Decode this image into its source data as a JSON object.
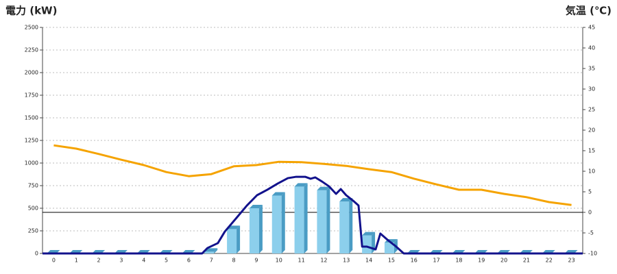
{
  "chart_data": {
    "type": "combo",
    "y_title": "電力 (kW)",
    "y_title_color": "#1f6fb5",
    "y2_title": "気温 (℃)",
    "y2_title_color": "#f08020",
    "categories": [
      "0",
      "1",
      "2",
      "3",
      "4",
      "5",
      "6",
      "7",
      "8",
      "9",
      "10",
      "11",
      "12",
      "13",
      "14",
      "15",
      "16",
      "17",
      "18",
      "19",
      "20",
      "21",
      "22",
      "23"
    ],
    "xlim": [
      -0.5,
      23.5
    ],
    "ylim": [
      0,
      2500
    ],
    "yticks": [
      0,
      250,
      500,
      750,
      1000,
      1250,
      1500,
      1750,
      2000,
      2250,
      2500
    ],
    "y2lim": [
      -10,
      45
    ],
    "y2ticks": [
      -10,
      -5,
      0,
      5,
      10,
      15,
      20,
      25,
      30,
      35,
      40,
      45
    ],
    "y2_reference_line": 0,
    "grid": true,
    "series": [
      {
        "type": "bar",
        "color": "#8ccfec",
        "side_color": "#4a9cc4",
        "values": [
          0,
          0,
          0,
          0,
          0,
          0,
          0,
          20,
          270,
          500,
          640,
          740,
          700,
          575,
          200,
          120,
          0,
          0,
          0,
          0,
          0,
          0,
          0,
          0
        ]
      },
      {
        "type": "line",
        "axis": "y2",
        "color": "#f5a300",
        "values": [
          16.3,
          15.5,
          14.2,
          12.8,
          11.5,
          9.8,
          8.8,
          9.3,
          11.2,
          11.5,
          12.3,
          12.2,
          11.8,
          11.3,
          10.5,
          9.8,
          8.2,
          6.8,
          5.5,
          5.5,
          4.5,
          3.7,
          2.5,
          1.8
        ]
      },
      {
        "type": "line",
        "color": "#12128c",
        "x": [
          -0.5,
          6.59,
          6.83,
          7.29,
          7.6,
          8.12,
          8.58,
          9.03,
          9.49,
          9.95,
          10.4,
          10.77,
          11.17,
          11.41,
          11.62,
          11.92,
          12.23,
          12.54,
          12.75,
          12.99,
          13.3,
          13.54,
          13.7,
          13.9,
          14.3,
          14.51,
          14.82,
          15.21,
          15.55,
          23.5
        ],
        "values": [
          0,
          0,
          60,
          114,
          242,
          394,
          530,
          644,
          705,
          773,
          833,
          848,
          848,
          826,
          841,
          795,
          742,
          659,
          712,
          644,
          583,
          530,
          76,
          76,
          45,
          220,
          152,
          76,
          0,
          0
        ]
      }
    ]
  }
}
